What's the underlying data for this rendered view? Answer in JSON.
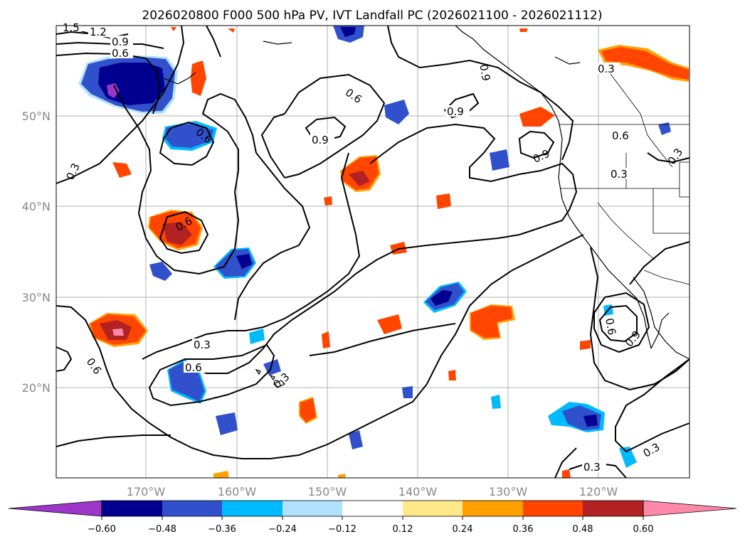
{
  "title": "2026020800 F000 500 hPa PV, IVT Landfall PC (2026021100 - 2026021112)",
  "longitude_labels": [
    "170°W",
    "160°W",
    "150°W",
    "140°W",
    "130°W",
    "120°W"
  ],
  "latitude_labels": [
    "50°N",
    "40°N",
    "30°N",
    "20°N"
  ],
  "contour_labels": {
    "c12": "1.2",
    "c15": "1.5",
    "c09": "0.9",
    "c06": "0.6",
    "c03": "0.3"
  },
  "colorbar": {
    "tick_labels": [
      "−0.60",
      "−0.48",
      "−0.36",
      "−0.24",
      "−0.12",
      "0.12",
      "0.24",
      "0.36",
      "0.48",
      "0.60"
    ],
    "colors": {
      "under": "#9b36c9",
      "b1": "#000090",
      "b2": "#3050cc",
      "b3": "#00baff",
      "b4": "#b0e2ff",
      "b5": "#ffffff",
      "b6": "#ffe88a",
      "b7": "#ffa000",
      "b8": "#ff4500",
      "b9": "#b22222",
      "over": "#ff88aa"
    }
  }
}
